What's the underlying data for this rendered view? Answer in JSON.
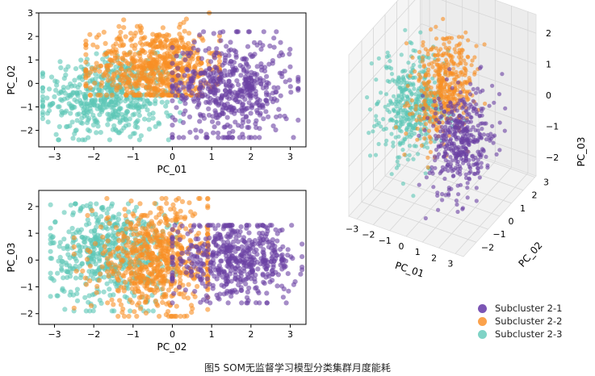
{
  "colors": {
    "subcluster_2_1": "#6a41a4",
    "subcluster_2_2": "#f98f24",
    "subcluster_2_3": "#5cc6b6"
  },
  "caption": "图5 SOM无监督学习模型分类集群月度能耗",
  "legend": [
    {
      "label": "Subcluster 2-1",
      "color": "#6a41a4"
    },
    {
      "label": "Subcluster 2-2",
      "color": "#f98f24"
    },
    {
      "label": "Subcluster 2-3",
      "color": "#5cc6b6"
    }
  ],
  "chart_data": [
    {
      "type": "scatter",
      "xlabel": "PC_01",
      "ylabel": "PC_02",
      "xlim": [
        -3.4,
        3.4
      ],
      "ylim": [
        -2.7,
        3.0
      ],
      "xticks": [
        -3,
        -2,
        -1,
        0,
        1,
        2,
        3
      ],
      "yticks": [
        -2,
        -1,
        0,
        1,
        2,
        3
      ],
      "series": [
        {
          "name": "Subcluster 2-1",
          "color": "#6a41a4",
          "x_range": [
            0.0,
            3.2
          ],
          "y_range": [
            -2.3,
            2.2
          ],
          "center": [
            1.5,
            -0.2
          ]
        },
        {
          "name": "Subcluster 2-2",
          "color": "#f98f24",
          "x_range": [
            -2.2,
            1.2
          ],
          "y_range": [
            -0.5,
            3.0
          ],
          "center": [
            -0.4,
            0.7
          ]
        },
        {
          "name": "Subcluster 2-3",
          "color": "#5cc6b6",
          "x_range": [
            -3.3,
            0.2
          ],
          "y_range": [
            -2.4,
            1.3
          ],
          "center": [
            -1.6,
            -0.6
          ]
        }
      ]
    },
    {
      "type": "scatter",
      "xlabel": "PC_02",
      "ylabel": "PC_03",
      "xlim": [
        -3.4,
        3.4
      ],
      "ylim": [
        -2.4,
        2.6
      ],
      "xticks": [
        -3,
        -2,
        -1,
        0,
        1,
        2,
        3
      ],
      "yticks": [
        -2,
        -1,
        0,
        1,
        2
      ],
      "series": [
        {
          "name": "Subcluster 2-1",
          "color": "#6a41a4",
          "x_range": [
            0.0,
            3.3
          ],
          "y_range": [
            -1.6,
            1.3
          ],
          "center": [
            1.6,
            0.0
          ]
        },
        {
          "name": "Subcluster 2-2",
          "color": "#f98f24",
          "x_range": [
            -2.5,
            0.9
          ],
          "y_range": [
            -2.1,
            2.3
          ],
          "center": [
            -0.4,
            0.0
          ]
        },
        {
          "name": "Subcluster 2-3",
          "color": "#5cc6b6",
          "x_range": [
            -3.1,
            0.1
          ],
          "y_range": [
            -1.9,
            2.1
          ],
          "center": [
            -1.6,
            0.3
          ]
        }
      ]
    },
    {
      "type": "scatter3d",
      "xlabel": "PC_01",
      "ylabel": "PC_02",
      "zlabel": "PC_03",
      "xticks": [
        -3,
        -2,
        -1,
        0,
        1,
        2,
        3
      ],
      "yticks": [
        -2,
        -1,
        0,
        1,
        2,
        3
      ],
      "zticks": [
        -2,
        -1,
        0,
        1,
        2
      ],
      "series": [
        {
          "name": "Subcluster 2-1",
          "color": "#6a41a4",
          "center": [
            1.5,
            -0.5,
            -0.3
          ]
        },
        {
          "name": "Subcluster 2-2",
          "color": "#f98f24",
          "center": [
            -0.4,
            0.8,
            0.5
          ]
        },
        {
          "name": "Subcluster 2-3",
          "color": "#5cc6b6",
          "center": [
            -1.6,
            -0.4,
            0.2
          ]
        }
      ]
    }
  ]
}
